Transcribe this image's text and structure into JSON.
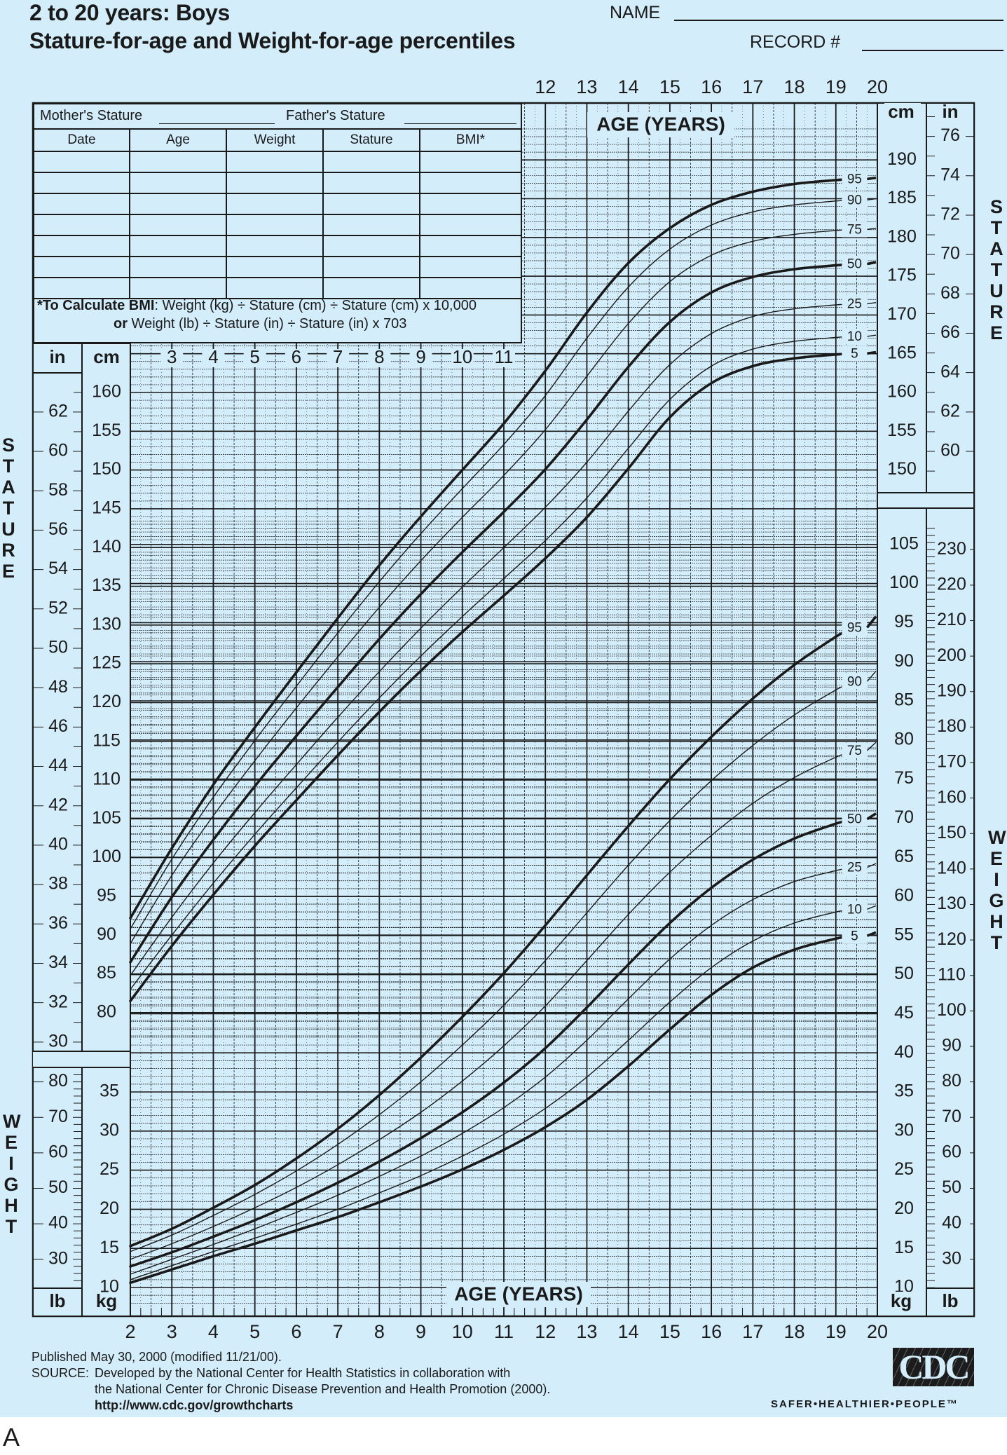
{
  "header": {
    "title_line1": "2 to 20 years: Boys",
    "title_line2": "Stature-for-age and Weight-for-age percentiles",
    "name_label": "NAME",
    "record_label": "RECORD #"
  },
  "record_table": {
    "mothers_stature_label": "Mother's Stature",
    "fathers_stature_label": "Father's Stature",
    "columns": [
      "Date",
      "Age",
      "Weight",
      "Stature",
      "BMI*"
    ],
    "empty_rows": 7,
    "bmi_note_bold": "*To Calculate BMI",
    "bmi_note_line1": ": Weight (kg) ÷ Stature (cm) ÷ Stature (cm) x 10,000",
    "bmi_note_or": "or",
    "bmi_note_line2": " Weight (lb) ÷ Stature (in) ÷ Stature (in) x 703"
  },
  "axis_labels": {
    "age_years": "AGE (YEARS)",
    "stature_vertical": "STATURE",
    "weight_vertical": "WEIGHT",
    "in": "in",
    "cm": "cm",
    "kg": "kg",
    "lb": "lb"
  },
  "footer": {
    "published": "Published May 30, 2000 (modified 11/21/00).",
    "source_label": "SOURCE:",
    "source_line1": "Developed by the National Center for Health Statistics in collaboration with",
    "source_line2": "the National Center for Chronic Disease Prevention and Health Promotion (2000).",
    "url": "http://www.cdc.gov/growthcharts",
    "logo_text": "CDC",
    "tagline": "SAFER•HEALTHIER•PEOPLE™",
    "figure_label": "A"
  },
  "colors": {
    "background": "#d3edfa",
    "ink": "#1a1a1a",
    "grid_minor": "#3a4a55"
  },
  "chart_data": [
    {
      "type": "line",
      "title": "Stature-for-age percentiles (Boys, 2 to 20 years)",
      "xlabel": "AGE (YEARS)",
      "ylabel": "STATURE (cm / in)",
      "x": [
        2,
        3,
        4,
        5,
        6,
        7,
        8,
        9,
        10,
        11,
        12,
        13,
        14,
        15,
        16,
        17,
        18,
        19,
        20
      ],
      "xlim": [
        2,
        20
      ],
      "ylim_cm": [
        77,
        195
      ],
      "left_cm_ticks": [
        80,
        85,
        90,
        95,
        100,
        105,
        110,
        115,
        120,
        125,
        130,
        135,
        140,
        145,
        150,
        155,
        160
      ],
      "left_in_ticks": [
        30,
        32,
        34,
        36,
        38,
        40,
        42,
        44,
        46,
        48,
        50,
        52,
        54,
        56,
        58,
        60,
        62
      ],
      "right_cm_ticks": [
        150,
        155,
        160,
        165,
        170,
        175,
        180,
        185,
        190
      ],
      "right_in_ticks": [
        60,
        62,
        64,
        66,
        68,
        70,
        72,
        74,
        76
      ],
      "top_age_ticks": [
        12,
        13,
        14,
        15,
        16,
        17,
        18,
        19,
        20
      ],
      "inner_age_ticks": [
        3,
        4,
        5,
        6,
        7,
        8,
        9,
        10,
        11
      ],
      "grid": true,
      "series": [
        {
          "name": "5",
          "bold": true,
          "values": [
            81.5,
            88.6,
            95.2,
            101.5,
            107.4,
            113.2,
            118.8,
            124.1,
            129.1,
            133.8,
            138.6,
            143.9,
            150.2,
            156.8,
            161.2,
            163.4,
            164.4,
            164.9,
            165.2
          ]
        },
        {
          "name": "10",
          "bold": false,
          "values": [
            83.0,
            90.0,
            96.7,
            103.0,
            109.0,
            114.9,
            120.6,
            126.0,
            131.1,
            136.0,
            140.9,
            146.4,
            152.8,
            159.1,
            163.4,
            165.6,
            166.6,
            167.1,
            167.4
          ]
        },
        {
          "name": "25",
          "bold": false,
          "values": [
            84.8,
            92.3,
            99.3,
            105.8,
            112.0,
            118.1,
            124.0,
            129.6,
            134.9,
            140.0,
            145.2,
            151.0,
            157.6,
            163.6,
            167.6,
            169.8,
            170.8,
            171.3,
            171.6
          ]
        },
        {
          "name": "50",
          "bold": true,
          "values": [
            86.5,
            94.9,
            102.3,
            109.2,
            115.7,
            122.0,
            128.2,
            134.0,
            139.4,
            144.6,
            150.1,
            156.5,
            163.3,
            169.1,
            172.9,
            174.9,
            175.9,
            176.4,
            176.8
          ]
        },
        {
          "name": "75",
          "bold": false,
          "values": [
            88.9,
            97.7,
            105.4,
            112.5,
            119.3,
            125.9,
            132.3,
            138.3,
            143.9,
            149.3,
            155.2,
            162.1,
            168.9,
            174.3,
            177.7,
            179.5,
            180.4,
            180.9,
            181.2
          ]
        },
        {
          "name": "90",
          "bold": false,
          "values": [
            90.8,
            99.8,
            107.8,
            115.1,
            122.1,
            129.0,
            135.6,
            141.8,
            147.6,
            153.3,
            159.6,
            167.0,
            173.6,
            178.5,
            181.6,
            183.3,
            184.2,
            184.7,
            185.0
          ]
        },
        {
          "name": "95",
          "bold": true,
          "values": [
            92.2,
            101.2,
            109.4,
            116.8,
            123.9,
            130.9,
            137.7,
            144.0,
            150.0,
            156.0,
            162.8,
            170.3,
            176.7,
            181.2,
            184.2,
            185.9,
            186.9,
            187.4,
            187.7
          ]
        }
      ]
    },
    {
      "type": "line",
      "title": "Weight-for-age percentiles (Boys, 2 to 20 years)",
      "xlabel": "AGE (YEARS)",
      "ylabel": "WEIGHT (kg / lb)",
      "x": [
        2,
        3,
        4,
        5,
        6,
        7,
        8,
        9,
        10,
        11,
        12,
        13,
        14,
        15,
        16,
        17,
        18,
        19,
        20
      ],
      "xlim": [
        2,
        20
      ],
      "ylim_kg": [
        8,
        110
      ],
      "left_kg_ticks": [
        10,
        15,
        20,
        25,
        30,
        35
      ],
      "left_lb_ticks": [
        30,
        40,
        50,
        60,
        70,
        80
      ],
      "right_kg_ticks": [
        10,
        15,
        20,
        25,
        30,
        35,
        40,
        45,
        50,
        55,
        60,
        65,
        70,
        75,
        80,
        85,
        90,
        95,
        100,
        105
      ],
      "right_lb_ticks": [
        30,
        40,
        50,
        60,
        70,
        80,
        90,
        100,
        110,
        120,
        130,
        140,
        150,
        160,
        170,
        180,
        190,
        200,
        210,
        220,
        230
      ],
      "bottom_age_ticks": [
        2,
        3,
        4,
        5,
        6,
        7,
        8,
        9,
        10,
        11,
        12,
        13,
        14,
        15,
        16,
        17,
        18,
        19,
        20
      ],
      "grid": true,
      "series": [
        {
          "name": "5",
          "bold": true,
          "values": [
            10.6,
            12.3,
            14.0,
            15.6,
            17.3,
            19.0,
            20.9,
            22.9,
            25.1,
            27.6,
            30.5,
            34.0,
            38.3,
            43.0,
            47.4,
            50.9,
            53.2,
            54.6,
            55.4
          ]
        },
        {
          "name": "10",
          "bold": false,
          "values": [
            11.0,
            12.8,
            14.6,
            16.3,
            18.1,
            20.0,
            22.1,
            24.3,
            26.8,
            29.6,
            32.9,
            36.9,
            41.6,
            46.5,
            50.9,
            54.3,
            56.6,
            58.0,
            58.8
          ]
        },
        {
          "name": "25",
          "bold": false,
          "values": [
            11.7,
            13.6,
            15.5,
            17.5,
            19.6,
            21.8,
            24.2,
            26.8,
            29.7,
            33.0,
            36.9,
            41.6,
            46.9,
            52.0,
            56.3,
            59.6,
            61.9,
            63.3,
            64.2
          ]
        },
        {
          "name": "50",
          "bold": true,
          "values": [
            12.7,
            14.5,
            16.5,
            18.6,
            20.9,
            23.4,
            26.1,
            29.1,
            32.4,
            36.2,
            40.6,
            45.8,
            51.3,
            56.6,
            61.1,
            64.7,
            67.4,
            69.3,
            70.6
          ]
        },
        {
          "name": "75",
          "bold": false,
          "values": [
            13.6,
            15.6,
            17.8,
            20.2,
            22.8,
            25.7,
            28.9,
            32.4,
            36.4,
            40.9,
            46.0,
            51.8,
            57.7,
            63.1,
            67.8,
            71.9,
            75.2,
            77.8,
            79.7
          ]
        },
        {
          "name": "90",
          "bold": false,
          "values": [
            14.6,
            16.7,
            19.2,
            21.9,
            24.9,
            28.3,
            32.1,
            36.3,
            41.0,
            46.1,
            51.8,
            57.9,
            64.0,
            69.7,
            74.8,
            79.3,
            83.2,
            86.4,
            88.8
          ]
        },
        {
          "name": "95",
          "bold": true,
          "values": [
            15.3,
            17.5,
            20.2,
            23.1,
            26.5,
            30.3,
            34.6,
            39.4,
            44.6,
            50.2,
            56.3,
            62.7,
            69.0,
            75.0,
            80.4,
            85.3,
            89.6,
            93.2,
            95.8
          ]
        }
      ]
    }
  ]
}
